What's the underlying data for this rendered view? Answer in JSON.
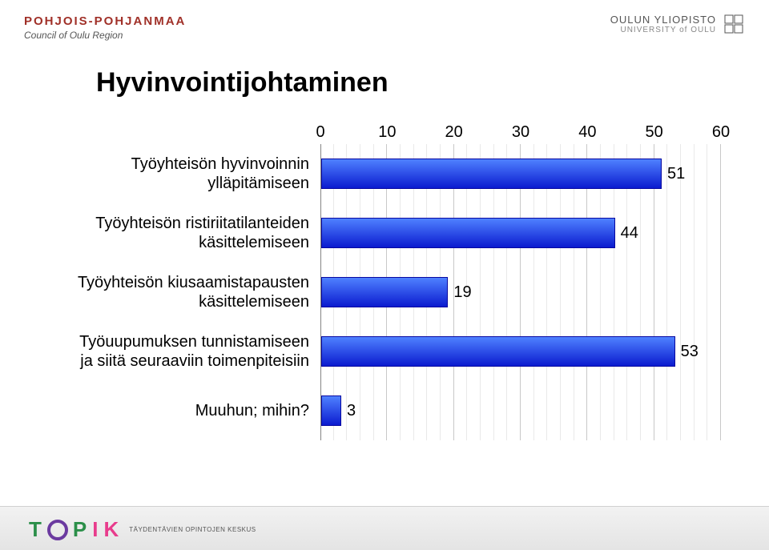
{
  "logos": {
    "top_left_line1": "POHJOIS-POHJANMAA",
    "top_left_line2": "Council of Oulu Region",
    "top_right_line1": "OULUN YLIOPISTO",
    "top_right_line2": "UNIVERSITY of OULU",
    "bottom_name": "TOPIK",
    "bottom_strap": "TÄYDENTÄVIEN OPINTOJEN KESKUS"
  },
  "title": "Hyvinvointijohtaminen",
  "title_fontsize": 34,
  "chart": {
    "type": "bar-horizontal",
    "xlim": [
      0,
      60
    ],
    "xtick_step": 10,
    "minor_tick_step": 10,
    "minor_subdivisions": 5,
    "tick_labels": [
      "0",
      "10",
      "20",
      "30",
      "40",
      "50",
      "60"
    ],
    "axis_fontsize": 20,
    "label_fontsize": 20,
    "value_fontsize": 20,
    "grid_color": "#858585",
    "minor_grid_color": "#c0c0c0",
    "background_color": "#ffffff",
    "bar_gradient_top": "#4f81ff",
    "bar_gradient_bottom": "#0b1bcf",
    "bar_border_color": "#0808a0",
    "categories": [
      "Työyhteisön hyvinvoinnin\nylläpitämiseen",
      "Työyhteisön ristiriitatilanteiden\nkäsittelemiseen",
      "Työyhteisön kiusaamistapausten\nkäsittelemiseen",
      "Työuupumuksen tunnistamiseen\nja siitä seuraaviin toimenpiteisiin",
      "Muuhun; mihin?"
    ],
    "values": [
      51,
      44,
      19,
      53,
      3
    ],
    "value_labels": [
      "51",
      "44",
      "19",
      "53",
      "3"
    ]
  }
}
